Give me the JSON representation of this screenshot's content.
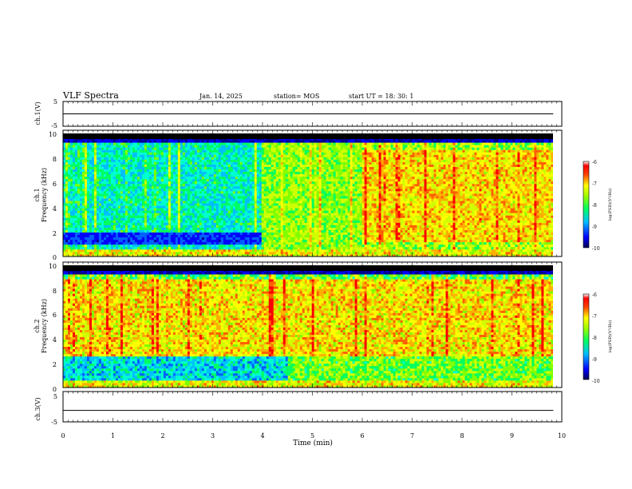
{
  "header": {
    "title": "VLF Spectra",
    "date": "Jan. 14, 2025",
    "station": "station= MOS",
    "start": "start  UT  =  18: 30: 1"
  },
  "chart_data": [
    {
      "type": "line",
      "panel": "ch1-waveform",
      "ylabel": "ch.1(V)",
      "ylim": [
        -5,
        5
      ],
      "yticks": [
        "5",
        "-5"
      ],
      "level": 0
    },
    {
      "type": "heatmap",
      "panel": "ch1-spectrogram",
      "ylabel": "ch.1",
      "ylabel2": "Frequency (kHz)",
      "ylim": [
        0,
        10
      ],
      "yticks": [
        "0",
        "2",
        "4",
        "6",
        "8",
        "10"
      ],
      "colorbar": {
        "label": "log(PSD)(V²/Hz)",
        "range": [
          -10,
          -6
        ],
        "ticks": [
          "-6",
          "-7",
          "-8",
          "-9",
          "-10"
        ]
      }
    },
    {
      "type": "heatmap",
      "panel": "ch2-spectrogram",
      "ylabel": "ch.2",
      "ylabel2": "Frequency (kHz)",
      "ylim": [
        0,
        10
      ],
      "yticks": [
        "0",
        "2",
        "4",
        "6",
        "8",
        "10"
      ],
      "colorbar": {
        "label": "log(PSD)(V²/Hz)",
        "range": [
          -10,
          -6
        ],
        "ticks": [
          "-6",
          "-7",
          "-8",
          "-9",
          "-10"
        ]
      }
    },
    {
      "type": "line",
      "panel": "ch3-waveform",
      "ylabel": "ch.3(V)",
      "ylim": [
        -5,
        5
      ],
      "yticks": [
        "5",
        "-5"
      ],
      "level": -1
    }
  ],
  "xaxis": {
    "label": "Time (min)",
    "xlim": [
      0,
      10
    ],
    "ticks": [
      "0",
      "1",
      "2",
      "3",
      "4",
      "5",
      "6",
      "7",
      "8",
      "9",
      "10"
    ]
  },
  "colors": {
    "colormap": [
      "#00007f",
      "#0000ff",
      "#00bfff",
      "#00ff7f",
      "#7fff00",
      "#ffff00",
      "#ff7f00",
      "#ff0000",
      "#ffffff"
    ]
  }
}
